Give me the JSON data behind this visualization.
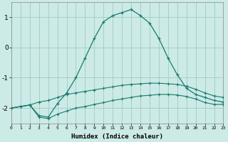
{
  "x": [
    0,
    1,
    2,
    3,
    4,
    5,
    6,
    7,
    8,
    9,
    10,
    11,
    12,
    13,
    14,
    15,
    16,
    17,
    18,
    19,
    20,
    21,
    22,
    23
  ],
  "line_main": [
    -2.0,
    -1.95,
    -1.9,
    -2.25,
    -2.3,
    -1.85,
    -1.5,
    -1.0,
    -0.35,
    0.3,
    0.85,
    1.05,
    1.15,
    1.25,
    1.05,
    0.8,
    0.3,
    -0.35,
    -0.9,
    -1.35,
    -1.55,
    -1.65,
    -1.75,
    -1.8
  ],
  "line_upper": [
    -2.0,
    -1.95,
    -1.9,
    -1.8,
    -1.75,
    -1.65,
    -1.55,
    -1.5,
    -1.45,
    -1.4,
    -1.35,
    -1.3,
    -1.25,
    -1.22,
    -1.2,
    -1.18,
    -1.18,
    -1.2,
    -1.22,
    -1.28,
    -1.38,
    -1.5,
    -1.6,
    -1.65
  ],
  "line_lower": [
    -2.0,
    -1.95,
    -1.9,
    -2.3,
    -2.35,
    -2.2,
    -2.1,
    -2.0,
    -1.95,
    -1.88,
    -1.82,
    -1.75,
    -1.7,
    -1.65,
    -1.6,
    -1.58,
    -1.55,
    -1.55,
    -1.57,
    -1.62,
    -1.7,
    -1.82,
    -1.88,
    -1.88
  ],
  "xlabel": "Humidex (Indice chaleur)",
  "xlim": [
    0,
    23
  ],
  "ylim": [
    -2.5,
    1.5
  ],
  "yticks": [
    -2,
    -1,
    0,
    1
  ],
  "xtick_labels": [
    "0",
    "1",
    "2",
    "3",
    "4",
    "5",
    "6",
    "7",
    "8",
    "9",
    "10",
    "11",
    "12",
    "13",
    "14",
    "15",
    "16",
    "17",
    "18",
    "19",
    "20",
    "21",
    "22",
    "23"
  ],
  "line_color": "#1a7a6e",
  "bg_color": "#cceae6",
  "grid_color": "#a0ccc8",
  "spine_color": "#888888"
}
